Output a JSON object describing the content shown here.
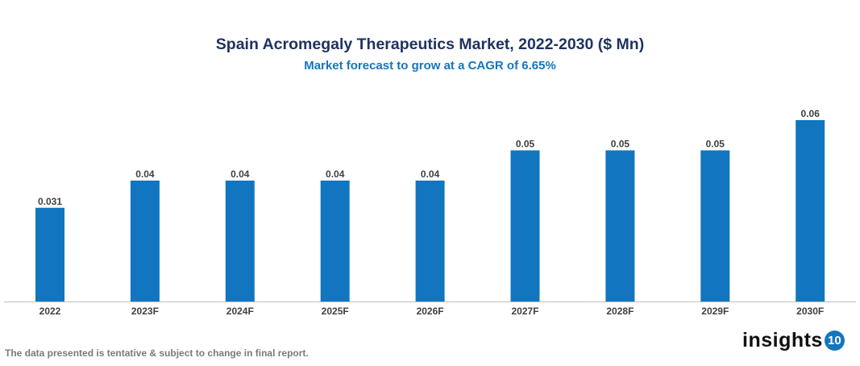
{
  "chart_data": {
    "type": "bar",
    "title": "Spain Acromegaly Therapeutics Market, 2022-2030 ($ Mn)",
    "subtitle": "Market forecast to grow at a CAGR of 6.65%",
    "categories": [
      "2022",
      "2023F",
      "2024F",
      "2025F",
      "2026F",
      "2027F",
      "2028F",
      "2029F",
      "2030F"
    ],
    "values": [
      0.031,
      0.04,
      0.04,
      0.04,
      0.04,
      0.05,
      0.05,
      0.05,
      0.06
    ],
    "labels": [
      "0.031",
      "0.04",
      "0.04",
      "0.04",
      "0.04",
      "0.05",
      "0.05",
      "0.05",
      "0.06"
    ],
    "xlabel": "",
    "ylabel": "",
    "ylim": [
      0,
      0.06
    ],
    "grid": false,
    "bar_color": "#1176bf"
  },
  "footnote": "The data presented is tentative & subject to change in final report.",
  "logo": {
    "word": "insights",
    "badge": "10"
  }
}
